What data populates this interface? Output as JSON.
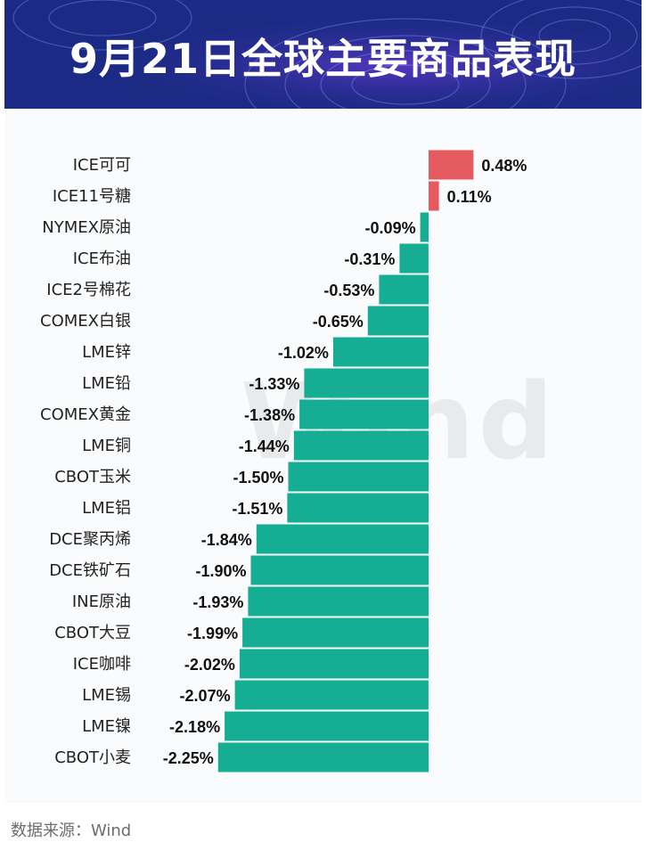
{
  "header": {
    "title": "9月21日全球主要商品表现"
  },
  "watermark": "Wind",
  "footer": {
    "source": "数据来源：Wind"
  },
  "colors": {
    "positive": "#e45a5f",
    "negative": "#15ad93",
    "header_bg": "#1d2b86",
    "label": "#222222"
  },
  "chart_data": {
    "type": "bar",
    "orientation": "horizontal",
    "title": "9月21日全球主要商品表现",
    "unit": "%",
    "categories": [
      "ICE可可",
      "ICE11号糖",
      "NYMEX原油",
      "ICE布油",
      "ICE2号棉花",
      "COMEX白银",
      "LME锌",
      "LME铅",
      "COMEX黄金",
      "LME铜",
      "CBOT玉米",
      "LME铝",
      "DCE聚丙烯",
      "DCE铁矿石",
      "INE原油",
      "CBOT大豆",
      "ICE咖啡",
      "LME锡",
      "LME镍",
      "CBOT小麦"
    ],
    "values": [
      0.48,
      0.11,
      -0.09,
      -0.31,
      -0.53,
      -0.65,
      -1.02,
      -1.33,
      -1.38,
      -1.44,
      -1.5,
      -1.51,
      -1.84,
      -1.9,
      -1.93,
      -1.99,
      -2.02,
      -2.07,
      -2.18,
      -2.25
    ],
    "value_labels": [
      "0.48%",
      "0.11%",
      "-0.09%",
      "-0.31%",
      "-0.53%",
      "-0.65%",
      "-1.02%",
      "-1.33%",
      "-1.38%",
      "-1.44%",
      "-1.50%",
      "-1.51%",
      "-1.84%",
      "-1.90%",
      "-1.93%",
      "-1.99%",
      "-2.02%",
      "-2.07%",
      "-2.18%",
      "-2.25%"
    ],
    "xlim": [
      -2.25,
      0.48
    ],
    "legend": "none",
    "grid": false
  }
}
